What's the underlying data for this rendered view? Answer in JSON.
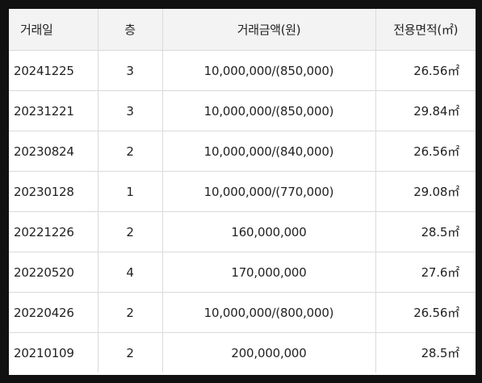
{
  "table": {
    "headers": {
      "date": "거래일",
      "floor": "층",
      "price": "거래금액(원)",
      "area": "전용면적(㎡)"
    },
    "rows": [
      {
        "date": "20241225",
        "floor": "3",
        "price": "10,000,000/(850,000)",
        "area": "26.56㎡"
      },
      {
        "date": "20231221",
        "floor": "3",
        "price": "10,000,000/(850,000)",
        "area": "29.84㎡"
      },
      {
        "date": "20230824",
        "floor": "2",
        "price": "10,000,000/(840,000)",
        "area": "26.56㎡"
      },
      {
        "date": "20230128",
        "floor": "1",
        "price": "10,000,000/(770,000)",
        "area": "29.08㎡"
      },
      {
        "date": "20221226",
        "floor": "2",
        "price": "160,000,000",
        "area": "28.5㎡"
      },
      {
        "date": "20220520",
        "floor": "4",
        "price": "170,000,000",
        "area": "27.6㎡"
      },
      {
        "date": "20220426",
        "floor": "2",
        "price": "10,000,000/(800,000)",
        "area": "26.56㎡"
      },
      {
        "date": "20210109",
        "floor": "2",
        "price": "200,000,000",
        "area": "28.5㎡"
      }
    ]
  }
}
